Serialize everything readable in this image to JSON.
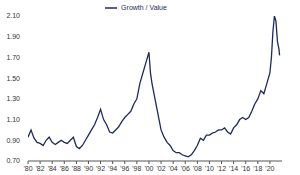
{
  "chart_data": {
    "type": "line",
    "legend": "top",
    "grid": false,
    "x": [
      1980.0,
      1980.5,
      1981.0,
      1981.5,
      1982.0,
      1982.5,
      1983.0,
      1983.5,
      1984.0,
      1984.5,
      1985.0,
      1985.5,
      1986.0,
      1986.5,
      1987.0,
      1987.5,
      1988.0,
      1988.5,
      1989.0,
      1989.5,
      1990.0,
      1990.5,
      1991.0,
      1991.5,
      1992.0,
      1992.5,
      1993.0,
      1993.5,
      1994.0,
      1994.5,
      1995.0,
      1995.5,
      1996.0,
      1996.5,
      1997.0,
      1997.5,
      1998.0,
      1998.5,
      1999.0,
      1999.5,
      2000.0,
      2000.25,
      2000.5,
      2001.0,
      2001.5,
      2002.0,
      2002.5,
      2003.0,
      2003.5,
      2004.0,
      2004.5,
      2005.0,
      2005.5,
      2006.0,
      2006.5,
      2007.0,
      2007.5,
      2008.0,
      2008.5,
      2009.0,
      2009.5,
      2010.0,
      2010.5,
      2011.0,
      2011.5,
      2012.0,
      2012.5,
      2013.0,
      2013.5,
      2014.0,
      2014.5,
      2015.0,
      2015.5,
      2016.0,
      2016.5,
      2017.0,
      2017.5,
      2018.0,
      2018.5,
      2019.0,
      2019.5,
      2020.0,
      2020.25,
      2020.5,
      2020.75,
      2021.0,
      2021.25,
      2021.5,
      2021.6
    ],
    "series": [
      {
        "name": "Growth / Value",
        "color": "#1f2a5c",
        "values": [
          0.93,
          1.0,
          0.92,
          0.88,
          0.87,
          0.85,
          0.9,
          0.93,
          0.88,
          0.86,
          0.88,
          0.9,
          0.88,
          0.87,
          0.9,
          0.93,
          0.84,
          0.82,
          0.85,
          0.9,
          0.95,
          1.0,
          1.05,
          1.12,
          1.2,
          1.1,
          1.05,
          0.98,
          0.97,
          1.0,
          1.03,
          1.08,
          1.12,
          1.15,
          1.18,
          1.25,
          1.3,
          1.45,
          1.55,
          1.65,
          1.75,
          1.55,
          1.45,
          1.3,
          1.15,
          1.0,
          0.93,
          0.88,
          0.85,
          0.8,
          0.78,
          0.78,
          0.76,
          0.75,
          0.74,
          0.76,
          0.8,
          0.85,
          0.92,
          0.9,
          0.95,
          0.95,
          0.97,
          0.98,
          1.0,
          1.0,
          1.02,
          0.98,
          0.96,
          1.02,
          1.05,
          1.1,
          1.12,
          1.1,
          1.12,
          1.18,
          1.25,
          1.3,
          1.38,
          1.35,
          1.45,
          1.55,
          1.7,
          1.95,
          2.1,
          2.05,
          1.85,
          1.78,
          1.72
        ]
      }
    ],
    "xlim": [
      1980,
      2022
    ],
    "xticks": [
      {
        "value": 1980,
        "label": "'80"
      },
      {
        "value": 1982,
        "label": "'82"
      },
      {
        "value": 1984,
        "label": "'84"
      },
      {
        "value": 1986,
        "label": "'86"
      },
      {
        "value": 1988,
        "label": "'88"
      },
      {
        "value": 1990,
        "label": "'90"
      },
      {
        "value": 1992,
        "label": "'92"
      },
      {
        "value": 1994,
        "label": "'94"
      },
      {
        "value": 1996,
        "label": "'96"
      },
      {
        "value": 1998,
        "label": "'98"
      },
      {
        "value": 2000,
        "label": "'00"
      },
      {
        "value": 2002,
        "label": "'02"
      },
      {
        "value": 2004,
        "label": "'04"
      },
      {
        "value": 2006,
        "label": "'06"
      },
      {
        "value": 2008,
        "label": "'08"
      },
      {
        "value": 2010,
        "label": "'10"
      },
      {
        "value": 2012,
        "label": "'12"
      },
      {
        "value": 2014,
        "label": "'14"
      },
      {
        "value": 2016,
        "label": "'16"
      },
      {
        "value": 2018,
        "label": "'18"
      },
      {
        "value": 2020,
        "label": "'20"
      }
    ],
    "ylim": [
      0.7,
      2.1
    ],
    "yticks": [
      {
        "value": 0.7,
        "label": "0.70"
      },
      {
        "value": 0.9,
        "label": "0.90"
      },
      {
        "value": 1.1,
        "label": "1.10"
      },
      {
        "value": 1.3,
        "label": "1.30"
      },
      {
        "value": 1.5,
        "label": "1.50"
      },
      {
        "value": 1.7,
        "label": "1.70"
      },
      {
        "value": 1.9,
        "label": "1.90"
      },
      {
        "value": 2.1,
        "label": "2.10"
      }
    ]
  }
}
